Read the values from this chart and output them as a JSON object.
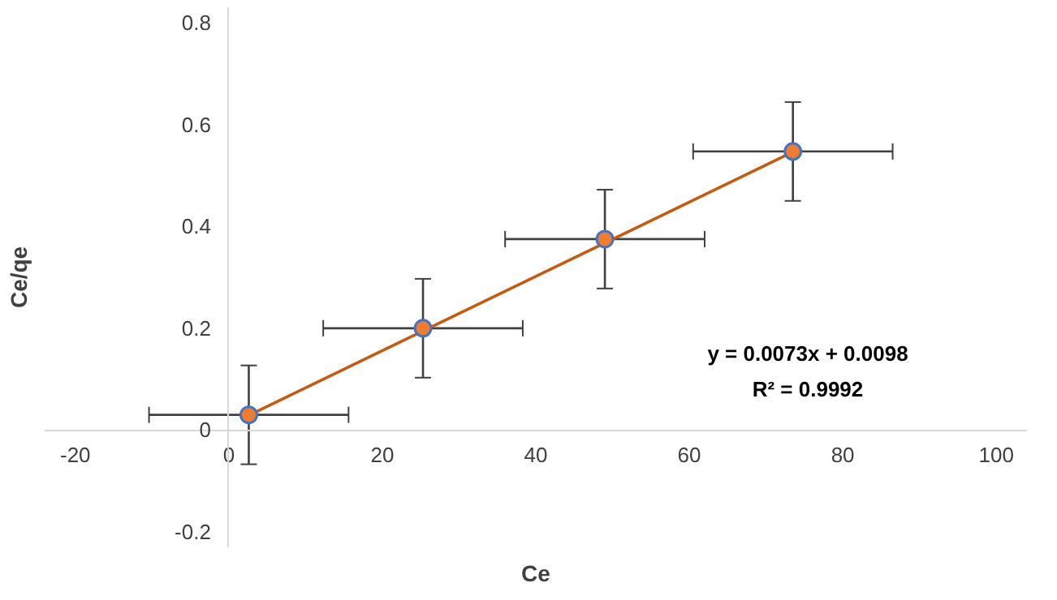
{
  "chart_data": {
    "type": "scatter",
    "xlabel": "Ce",
    "ylabel": "Ce/qe",
    "xlim": [
      -24,
      104
    ],
    "ylim": [
      -0.23,
      0.83
    ],
    "xticks": [
      -20,
      0,
      20,
      40,
      60,
      80,
      100
    ],
    "yticks": [
      -0.2,
      0,
      0.2,
      0.4,
      0.6,
      0.8
    ],
    "grid": false,
    "series": [
      {
        "marker": "circle",
        "color": "#ed7d31",
        "x": [
          2.6,
          25.3,
          49,
          73.5
        ],
        "values": [
          0.03,
          0.2,
          0.375,
          0.547
        ],
        "errors": [
          0.097,
          0.097,
          0.097,
          0.097
        ],
        "xerrors": [
          13,
          13,
          13,
          13
        ]
      },
      {
        "type": "line",
        "color": "#c55a11",
        "x": [
          2.6,
          73.5
        ],
        "values": [
          0.029,
          0.546
        ]
      }
    ],
    "annotations": [
      "y = 0.0073x + 0.0098",
      "R² = 0.9992"
    ]
  }
}
